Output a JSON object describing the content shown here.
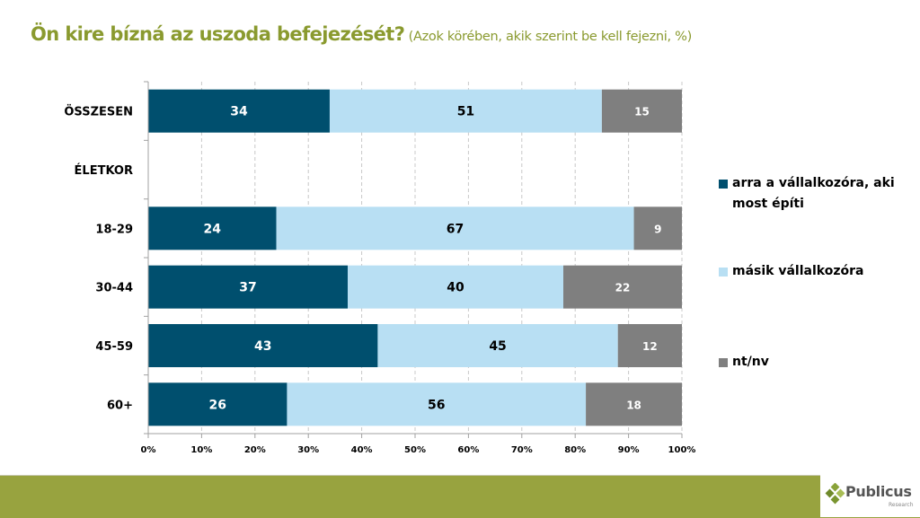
{
  "title": {
    "main": "Ön kire bízná az uszoda befejezését?",
    "sub": " (Azok körében, akik szerint be kell fejezni, %)"
  },
  "chart_data": {
    "type": "bar",
    "orientation": "horizontal",
    "stacked": true,
    "title": "Ön kire bízná az uszoda befejezését? (Azok körében, akik szerint be kell fejezni, %)",
    "xlabel": "",
    "ylabel": "",
    "xlim": [
      0,
      100
    ],
    "grid": true,
    "legend_position": "right",
    "categories": [
      "ÖSSZESEN",
      "ÉLETKOR",
      "18-29",
      "30-44",
      "45-59",
      "60+"
    ],
    "x_ticks": [
      "0%",
      "10%",
      "20%",
      "30%",
      "40%",
      "50%",
      "60%",
      "70%",
      "80%",
      "90%",
      "100%"
    ],
    "series": [
      {
        "name": "arra a vállalkozóra, aki most építi",
        "color": "#004f6e",
        "label_color": "#ffffff",
        "values": [
          34,
          null,
          24,
          37,
          43,
          26
        ]
      },
      {
        "name": "másik vállalkozóra",
        "color": "#b8dff3",
        "label_color": "#000000",
        "values": [
          51,
          null,
          67,
          40,
          45,
          56
        ]
      },
      {
        "name": "nt/nv",
        "color": "#7f7f7f",
        "label_color": "#ffffff",
        "values": [
          15,
          null,
          9,
          22,
          12,
          18
        ]
      }
    ]
  },
  "legend": {
    "items": [
      {
        "line1": "arra a vállalkozóra, aki",
        "line2": "most építi",
        "color": "#004f6e"
      },
      {
        "line1": "másik vállalkozóra",
        "line2": "",
        "color": "#b8dff3"
      },
      {
        "line1": "nt/nv",
        "line2": "",
        "color": "#7f7f7f"
      }
    ]
  },
  "footer": {
    "logo_name": "Publicus",
    "logo_sub": "Research",
    "band_color": "#98a33f"
  }
}
